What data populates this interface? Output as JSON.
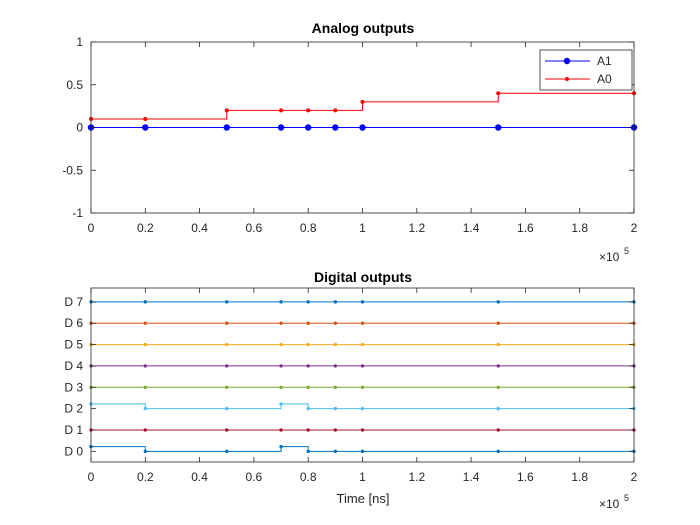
{
  "chart_data": [
    {
      "type": "line",
      "step": true,
      "title": "Analog outputs",
      "xlabel": "",
      "ylabel": "",
      "xlim": [
        0,
        200000
      ],
      "ylim": [
        -1,
        1
      ],
      "x_multiplier_label": "×10",
      "x_multiplier_exp": "5",
      "xticks": [
        {
          "v": 0,
          "label": "0"
        },
        {
          "v": 20000,
          "label": "0.2"
        },
        {
          "v": 40000,
          "label": "0.4"
        },
        {
          "v": 60000,
          "label": "0.6"
        },
        {
          "v": 80000,
          "label": "0.8"
        },
        {
          "v": 100000,
          "label": "1"
        },
        {
          "v": 120000,
          "label": "1.2"
        },
        {
          "v": 140000,
          "label": "1.4"
        },
        {
          "v": 160000,
          "label": "1.6"
        },
        {
          "v": 180000,
          "label": "1.8"
        },
        {
          "v": 200000,
          "label": "2"
        }
      ],
      "yticks": [
        {
          "v": 1,
          "label": "1"
        },
        {
          "v": 0.5,
          "label": "0.5"
        },
        {
          "v": 0,
          "label": "0"
        },
        {
          "v": -0.5,
          "label": "-0.5"
        },
        {
          "v": -1,
          "label": "-1"
        }
      ],
      "legend_position": "top-right",
      "series": [
        {
          "name": "A1",
          "color": "#0000ff",
          "marker": "large",
          "x": [
            0,
            20000,
            50000,
            70000,
            80000,
            90000,
            100000,
            150000,
            200000
          ],
          "y": [
            0,
            0,
            0,
            0,
            0,
            0,
            0,
            0,
            0
          ]
        },
        {
          "name": "A0",
          "color": "#ff0000",
          "marker": "small",
          "x": [
            0,
            20000,
            50000,
            70000,
            80000,
            90000,
            100000,
            150000,
            200000
          ],
          "y": [
            0.1,
            0.1,
            0.2,
            0.2,
            0.2,
            0.2,
            0.3,
            0.4,
            0.4
          ]
        }
      ]
    },
    {
      "type": "line",
      "step": true,
      "title": "Digital outputs",
      "xlabel": "Time [ns]",
      "ylabel": "",
      "xlim": [
        0,
        200000
      ],
      "x_multiplier_label": "×10",
      "x_multiplier_exp": "5",
      "xticks": [
        {
          "v": 0,
          "label": "0"
        },
        {
          "v": 20000,
          "label": "0.2"
        },
        {
          "v": 40000,
          "label": "0.4"
        },
        {
          "v": 60000,
          "label": "0.6"
        },
        {
          "v": 80000,
          "label": "0.8"
        },
        {
          "v": 100000,
          "label": "1"
        },
        {
          "v": 120000,
          "label": "1.2"
        },
        {
          "v": 140000,
          "label": "1.4"
        },
        {
          "v": 160000,
          "label": "1.6"
        },
        {
          "v": 180000,
          "label": "1.8"
        },
        {
          "v": 200000,
          "label": "2"
        }
      ],
      "channels": [
        {
          "label": "D 0",
          "color": "#0072bd",
          "x": [
            0,
            20000,
            50000,
            70000,
            80000,
            90000,
            100000,
            150000,
            200000
          ],
          "y": [
            1,
            0,
            0,
            1,
            0,
            0,
            0,
            0,
            0
          ]
        },
        {
          "label": "D 1",
          "color": "#a2142f",
          "x": [
            0,
            20000,
            50000,
            70000,
            80000,
            90000,
            100000,
            150000,
            200000
          ],
          "y": [
            0,
            0,
            0,
            0,
            0,
            0,
            0,
            0,
            0
          ]
        },
        {
          "label": "D 2",
          "color": "#4dbeee",
          "x": [
            0,
            20000,
            50000,
            70000,
            80000,
            90000,
            100000,
            150000,
            200000
          ],
          "y": [
            1,
            0,
            0,
            1,
            0,
            0,
            0,
            0,
            0
          ]
        },
        {
          "label": "D 3",
          "color": "#77ac30",
          "x": [
            0,
            20000,
            50000,
            70000,
            80000,
            90000,
            100000,
            150000,
            200000
          ],
          "y": [
            0,
            0,
            0,
            0,
            0,
            0,
            0,
            0,
            0
          ]
        },
        {
          "label": "D 4",
          "color": "#7e2f8e",
          "x": [
            0,
            20000,
            50000,
            70000,
            80000,
            90000,
            100000,
            150000,
            200000
          ],
          "y": [
            0,
            0,
            0,
            0,
            0,
            0,
            0,
            0,
            0
          ]
        },
        {
          "label": "D 5",
          "color": "#edb120",
          "x": [
            0,
            20000,
            50000,
            70000,
            80000,
            90000,
            100000,
            150000,
            200000
          ],
          "y": [
            0,
            0,
            0,
            0,
            0,
            0,
            0,
            0,
            0
          ]
        },
        {
          "label": "D 6",
          "color": "#d95319",
          "x": [
            0,
            20000,
            50000,
            70000,
            80000,
            90000,
            100000,
            150000,
            200000
          ],
          "y": [
            0,
            0,
            0,
            0,
            0,
            0,
            0,
            0,
            0
          ]
        },
        {
          "label": "D 7",
          "color": "#0072bd",
          "x": [
            0,
            20000,
            50000,
            70000,
            80000,
            90000,
            100000,
            150000,
            200000
          ],
          "y": [
            0,
            0,
            0,
            0,
            0,
            0,
            0,
            0,
            0
          ]
        }
      ]
    }
  ]
}
